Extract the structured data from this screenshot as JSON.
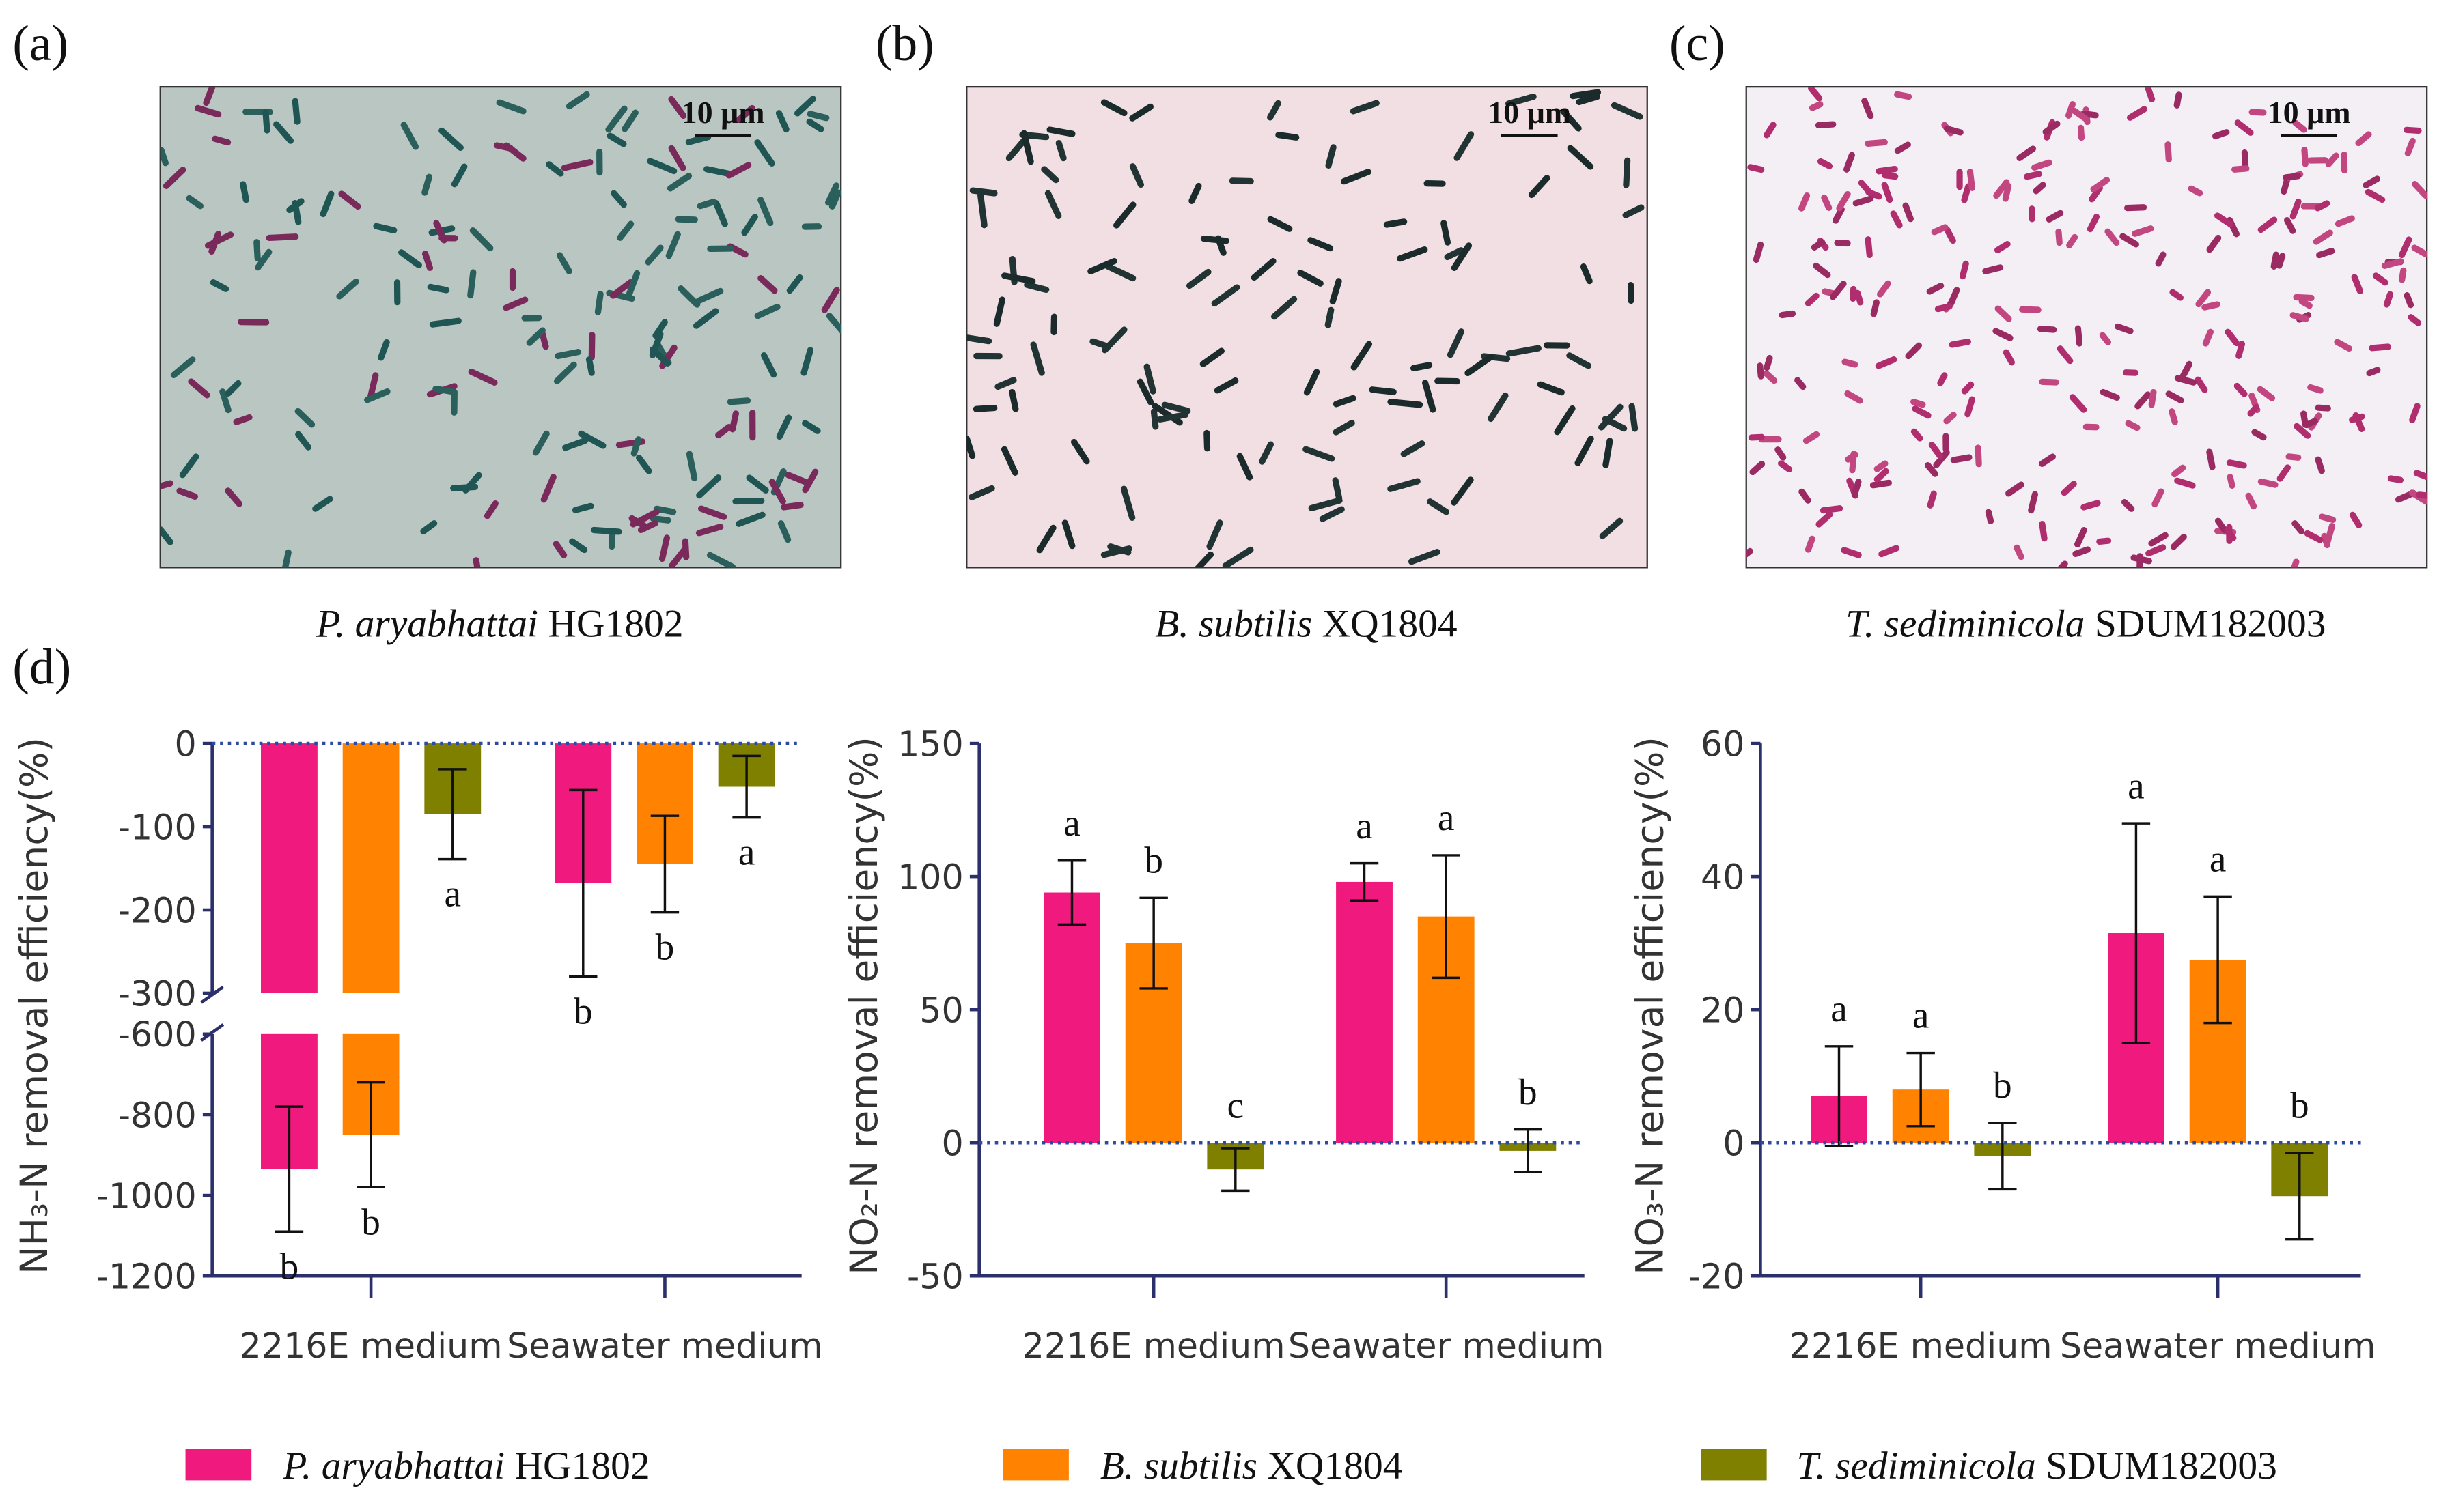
{
  "panel_labels": [
    "(a)",
    "(b)",
    "(c)",
    "(d)"
  ],
  "images": [
    {
      "scale_bar": "10 μm",
      "caption": "P. aryabhattai HG1802"
    },
    {
      "scale_bar": "10 μm",
      "caption": "B. subtilis XQ1804"
    },
    {
      "scale_bar": "10 μm",
      "caption": "T. sediminicola SDUM182003"
    }
  ],
  "chart_data": [
    {
      "type": "bar",
      "ylabel": "NH₃-N  removal efficiency(%)",
      "categories": [
        "2216E medium",
        "Seawater medium"
      ],
      "ylim": [
        -1200,
        0
      ],
      "axis_break": [
        -600,
        -300
      ],
      "yticks": [
        0,
        -100,
        -200,
        -300,
        -600,
        -800,
        -1000,
        -1200
      ],
      "series": [
        {
          "name": "P. aryabhattai HG1802",
          "color": "#f0197d",
          "values": [
            -935,
            -168
          ],
          "errors": [
            155,
            112
          ],
          "letters": [
            "b",
            "b"
          ]
        },
        {
          "name": "B. subtilis XQ1804",
          "color": "#ff8200",
          "values": [
            -850,
            -145
          ],
          "errors": [
            130,
            58
          ],
          "letters": [
            "b",
            "b"
          ]
        },
        {
          "name": "T. sediminicola SDUM182003",
          "color": "#7f7f00",
          "values": [
            -85,
            -52
          ],
          "errors": [
            54,
            37
          ],
          "letters": [
            "a",
            "a"
          ]
        }
      ]
    },
    {
      "type": "bar",
      "ylabel": "NO₂-N  removal efficiency(%)",
      "categories": [
        "2216E medium",
        "Seawater medium"
      ],
      "ylim": [
        -50,
        150
      ],
      "yticks": [
        -50,
        0,
        50,
        100,
        150
      ],
      "series": [
        {
          "color": "#f0197d",
          "values": [
            94,
            98
          ],
          "errors": [
            12,
            7
          ],
          "letters": [
            "a",
            "a"
          ]
        },
        {
          "color": "#ff8200",
          "values": [
            75,
            85
          ],
          "errors": [
            17,
            23
          ],
          "letters": [
            "b",
            "a"
          ]
        },
        {
          "color": "#7f7f00",
          "values": [
            -10,
            -3
          ],
          "errors": [
            8,
            8
          ],
          "letters": [
            "c",
            "b"
          ]
        }
      ]
    },
    {
      "type": "bar",
      "ylabel": "NO₃-N  removal efficiency(%)",
      "categories": [
        "2216E medium",
        "Seawater medium"
      ],
      "ylim": [
        -20,
        60
      ],
      "yticks": [
        -20,
        0,
        20,
        40,
        60
      ],
      "series": [
        {
          "color": "#f0197d",
          "values": [
            7,
            31.5
          ],
          "errors": [
            7.5,
            16.5
          ],
          "letters": [
            "a",
            "a"
          ]
        },
        {
          "color": "#ff8200",
          "values": [
            8,
            27.5
          ],
          "errors": [
            5.5,
            9.5
          ],
          "letters": [
            "a",
            "a"
          ]
        },
        {
          "color": "#7f7f00",
          "values": [
            -2,
            -8
          ],
          "errors": [
            5,
            6.5
          ],
          "letters": [
            "b",
            "b"
          ]
        }
      ]
    }
  ]
}
